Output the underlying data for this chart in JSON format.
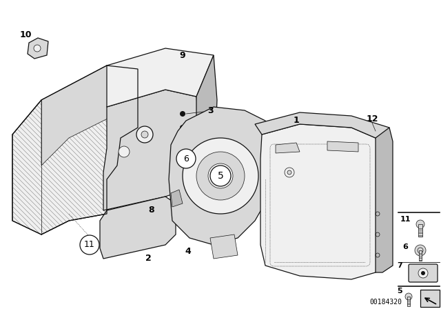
{
  "bg_color": "#ffffff",
  "watermark": "00184320",
  "fig_width": 6.4,
  "fig_height": 4.48,
  "dpi": 100,
  "lw_main": 0.9,
  "lw_thin": 0.5,
  "edge_color": "#111111",
  "fill_light": "#f0f0f0",
  "fill_mid": "#d8d8d8",
  "fill_dark": "#bbbbbb",
  "hatch_color": "#888888"
}
